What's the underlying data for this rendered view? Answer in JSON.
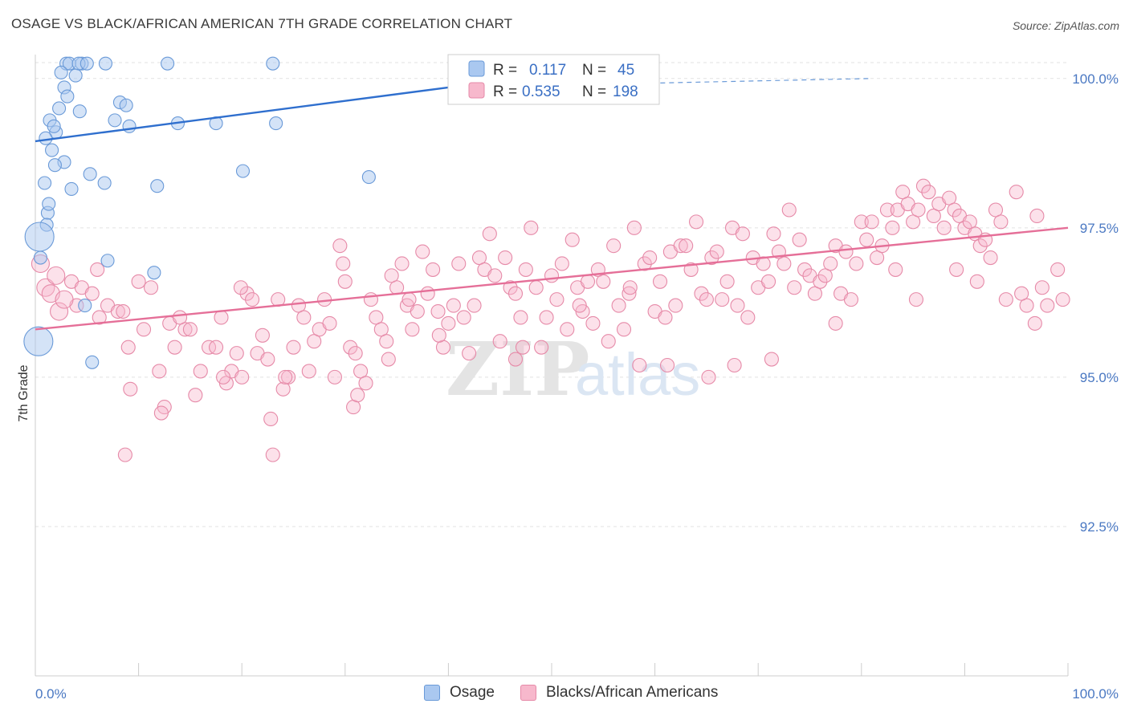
{
  "header": {
    "title": "OSAGE VS BLACK/AFRICAN AMERICAN 7TH GRADE CORRELATION CHART",
    "source": "Source: ZipAtlas.com"
  },
  "watermark": {
    "zip": "ZIP",
    "atlas": "atlas"
  },
  "legend": {
    "rows": [
      {
        "r_label": "R =",
        "r_value": "0.117",
        "n_label": "N =",
        "n_value": "45",
        "color": "#aac8f0",
        "stroke": "#6a9ad8"
      },
      {
        "r_label": "R =",
        "r_value": "0.535",
        "n_label": "N =",
        "n_value": "198",
        "color": "#f7b8cc",
        "stroke": "#e68aa8"
      }
    ]
  },
  "bottom_legend": {
    "items": [
      "Osage",
      "Blacks/African Americans"
    ]
  },
  "chart_data": {
    "type": "scatter",
    "title": "OSAGE VS BLACK/AFRICAN AMERICAN 7TH GRADE CORRELATION CHART",
    "xlabel": "",
    "ylabel": "7th Grade",
    "xlim": [
      0,
      100
    ],
    "ylim": [
      90.0,
      100.4
    ],
    "x_tick_labels": [
      "0.0%",
      "100.0%"
    ],
    "y_ticks": [
      100.0,
      97.5,
      95.0,
      92.5
    ],
    "y_tick_labels": [
      "100.0%",
      "97.5%",
      "95.0%",
      "92.5%"
    ],
    "grid": true,
    "legend_position": "top-center",
    "series": [
      {
        "name": "Osage",
        "color": "#aac8f0",
        "stroke": "#6a9ad8",
        "trend": {
          "x": [
            0,
            40
          ],
          "y": [
            98.95,
            99.85
          ],
          "dashed_to": [
            81,
            100.0
          ]
        },
        "points": [
          [
            3.0,
            100.25
          ],
          [
            3.3,
            100.25
          ],
          [
            4.5,
            100.25
          ],
          [
            6.8,
            100.25
          ],
          [
            4.2,
            100.25
          ],
          [
            5.0,
            100.25
          ],
          [
            12.8,
            100.25
          ],
          [
            23.0,
            100.25
          ],
          [
            2.5,
            100.1
          ],
          [
            3.9,
            100.05
          ],
          [
            2.8,
            99.85
          ],
          [
            3.1,
            99.7
          ],
          [
            8.2,
            99.6
          ],
          [
            8.8,
            99.55
          ],
          [
            2.3,
            99.5
          ],
          [
            4.3,
            99.45
          ],
          [
            1.4,
            99.3
          ],
          [
            2.0,
            99.1
          ],
          [
            1.8,
            99.2
          ],
          [
            7.7,
            99.3
          ],
          [
            9.1,
            99.2
          ],
          [
            13.8,
            99.25
          ],
          [
            17.5,
            99.25
          ],
          [
            23.3,
            99.25
          ],
          [
            1.0,
            99.0
          ],
          [
            1.6,
            98.8
          ],
          [
            2.8,
            98.6
          ],
          [
            1.9,
            98.55
          ],
          [
            20.1,
            98.45
          ],
          [
            32.3,
            98.35
          ],
          [
            5.3,
            98.4
          ],
          [
            6.7,
            98.25
          ],
          [
            0.9,
            98.25
          ],
          [
            3.5,
            98.15
          ],
          [
            11.8,
            98.2
          ],
          [
            1.2,
            97.75
          ],
          [
            1.1,
            97.55
          ],
          [
            0.4,
            97.35
          ],
          [
            0.5,
            97.0
          ],
          [
            7.0,
            96.95
          ],
          [
            11.5,
            96.75
          ],
          [
            4.8,
            96.2
          ],
          [
            5.5,
            95.25
          ],
          [
            0.3,
            95.6
          ],
          [
            1.3,
            97.9
          ]
        ]
      },
      {
        "name": "Blacks/African Americans",
        "color": "#f7b8cc",
        "stroke": "#e68aa8",
        "trend": {
          "x": [
            0,
            100
          ],
          "y": [
            95.8,
            97.5
          ]
        },
        "points": [
          [
            0.5,
            96.9
          ],
          [
            1.0,
            96.5
          ],
          [
            2.0,
            96.7
          ],
          [
            2.3,
            96.1
          ],
          [
            3.5,
            96.6
          ],
          [
            4.0,
            96.2
          ],
          [
            4.5,
            96.5
          ],
          [
            5.5,
            96.4
          ],
          [
            6.0,
            96.8
          ],
          [
            6.2,
            96.0
          ],
          [
            7.0,
            96.2
          ],
          [
            8.0,
            96.1
          ],
          [
            8.5,
            96.1
          ],
          [
            9.0,
            95.5
          ],
          [
            10.0,
            96.6
          ],
          [
            10.5,
            95.8
          ],
          [
            11.2,
            96.5
          ],
          [
            12.0,
            95.1
          ],
          [
            12.5,
            94.5
          ],
          [
            13.0,
            95.9
          ],
          [
            13.5,
            95.5
          ],
          [
            14.5,
            95.8
          ],
          [
            15.0,
            95.8
          ],
          [
            15.5,
            94.7
          ],
          [
            16.0,
            95.1
          ],
          [
            16.8,
            95.5
          ],
          [
            17.5,
            95.5
          ],
          [
            18.0,
            96.0
          ],
          [
            18.5,
            94.9
          ],
          [
            19.0,
            95.1
          ],
          [
            19.5,
            95.4
          ],
          [
            20.0,
            95.0
          ],
          [
            20.5,
            96.4
          ],
          [
            21.0,
            96.3
          ],
          [
            21.5,
            95.4
          ],
          [
            22.0,
            95.7
          ],
          [
            22.5,
            95.3
          ],
          [
            23.5,
            96.3
          ],
          [
            24.0,
            94.8
          ],
          [
            24.5,
            95.0
          ],
          [
            25.0,
            95.5
          ],
          [
            25.5,
            96.2
          ],
          [
            26.0,
            96.0
          ],
          [
            26.5,
            95.1
          ],
          [
            27.0,
            95.6
          ],
          [
            27.5,
            95.8
          ],
          [
            28.0,
            96.3
          ],
          [
            28.5,
            95.9
          ],
          [
            29.0,
            95.0
          ],
          [
            29.5,
            97.2
          ],
          [
            30.0,
            96.6
          ],
          [
            30.5,
            95.5
          ],
          [
            31.0,
            95.4
          ],
          [
            31.5,
            95.1
          ],
          [
            32.0,
            94.9
          ],
          [
            32.5,
            96.3
          ],
          [
            33.0,
            96.0
          ],
          [
            33.5,
            95.8
          ],
          [
            34.0,
            95.6
          ],
          [
            34.5,
            96.7
          ],
          [
            35.0,
            96.5
          ],
          [
            35.5,
            96.9
          ],
          [
            36.0,
            96.2
          ],
          [
            36.5,
            95.8
          ],
          [
            37.0,
            96.1
          ],
          [
            37.5,
            97.1
          ],
          [
            38.0,
            96.4
          ],
          [
            38.5,
            96.8
          ],
          [
            39.0,
            96.1
          ],
          [
            39.5,
            95.5
          ],
          [
            40.0,
            95.9
          ],
          [
            40.5,
            96.2
          ],
          [
            41.0,
            96.9
          ],
          [
            41.5,
            96.0
          ],
          [
            42.0,
            95.4
          ],
          [
            42.5,
            96.2
          ],
          [
            43.0,
            97.0
          ],
          [
            43.5,
            96.8
          ],
          [
            44.0,
            97.4
          ],
          [
            44.5,
            96.7
          ],
          [
            45.0,
            95.6
          ],
          [
            45.5,
            97.0
          ],
          [
            46.0,
            96.5
          ],
          [
            46.5,
            96.4
          ],
          [
            47.0,
            96.0
          ],
          [
            47.5,
            96.8
          ],
          [
            48.0,
            97.5
          ],
          [
            48.5,
            96.5
          ],
          [
            49.0,
            95.5
          ],
          [
            49.5,
            96.0
          ],
          [
            50.0,
            96.7
          ],
          [
            50.5,
            96.3
          ],
          [
            51.0,
            96.9
          ],
          [
            51.5,
            95.8
          ],
          [
            52.0,
            97.3
          ],
          [
            52.5,
            96.5
          ],
          [
            53.0,
            96.1
          ],
          [
            53.5,
            96.6
          ],
          [
            54.0,
            95.9
          ],
          [
            54.5,
            96.8
          ],
          [
            55.0,
            96.6
          ],
          [
            55.5,
            95.6
          ],
          [
            56.0,
            97.2
          ],
          [
            56.5,
            96.2
          ],
          [
            57.0,
            95.8
          ],
          [
            57.5,
            96.4
          ],
          [
            58.0,
            97.5
          ],
          [
            58.5,
            95.2
          ],
          [
            59.0,
            96.9
          ],
          [
            59.5,
            97.0
          ],
          [
            60.0,
            96.1
          ],
          [
            60.5,
            96.6
          ],
          [
            61.0,
            96.0
          ],
          [
            61.5,
            97.1
          ],
          [
            62.0,
            96.2
          ],
          [
            62.5,
            97.2
          ],
          [
            63.0,
            97.2
          ],
          [
            63.5,
            96.8
          ],
          [
            64.0,
            97.6
          ],
          [
            64.5,
            96.4
          ],
          [
            65.0,
            96.3
          ],
          [
            65.5,
            97.0
          ],
          [
            66.0,
            97.1
          ],
          [
            66.5,
            96.3
          ],
          [
            67.0,
            96.6
          ],
          [
            67.5,
            97.5
          ],
          [
            68.0,
            96.2
          ],
          [
            68.5,
            97.4
          ],
          [
            69.0,
            96.0
          ],
          [
            69.5,
            97.0
          ],
          [
            70.0,
            96.5
          ],
          [
            70.5,
            96.9
          ],
          [
            71.0,
            96.6
          ],
          [
            71.5,
            97.4
          ],
          [
            72.0,
            97.1
          ],
          [
            72.5,
            96.9
          ],
          [
            73.0,
            97.8
          ],
          [
            73.5,
            96.5
          ],
          [
            74.0,
            97.3
          ],
          [
            74.5,
            96.8
          ],
          [
            75.0,
            96.7
          ],
          [
            75.5,
            96.4
          ],
          [
            76.0,
            96.6
          ],
          [
            76.5,
            96.7
          ],
          [
            77.0,
            96.9
          ],
          [
            77.5,
            97.2
          ],
          [
            78.0,
            96.4
          ],
          [
            78.5,
            97.1
          ],
          [
            79.0,
            96.3
          ],
          [
            79.5,
            96.9
          ],
          [
            80.0,
            97.6
          ],
          [
            80.5,
            97.3
          ],
          [
            81.0,
            97.6
          ],
          [
            81.5,
            97.0
          ],
          [
            82.0,
            97.2
          ],
          [
            82.5,
            97.8
          ],
          [
            83.0,
            97.5
          ],
          [
            83.5,
            97.8
          ],
          [
            84.0,
            98.1
          ],
          [
            84.5,
            97.9
          ],
          [
            85.0,
            97.6
          ],
          [
            85.5,
            97.8
          ],
          [
            86.0,
            98.2
          ],
          [
            86.5,
            98.1
          ],
          [
            87.0,
            97.7
          ],
          [
            87.5,
            97.9
          ],
          [
            88.0,
            97.5
          ],
          [
            88.5,
            98.0
          ],
          [
            89.0,
            97.8
          ],
          [
            89.5,
            97.7
          ],
          [
            90.0,
            97.5
          ],
          [
            90.5,
            97.6
          ],
          [
            91.0,
            97.4
          ],
          [
            91.5,
            97.2
          ],
          [
            92.0,
            97.3
          ],
          [
            92.5,
            97.0
          ],
          [
            93.0,
            97.8
          ],
          [
            93.5,
            97.6
          ],
          [
            94.0,
            96.3
          ],
          [
            95.0,
            98.1
          ],
          [
            96.0,
            96.2
          ],
          [
            97.0,
            97.7
          ],
          [
            98.0,
            96.2
          ],
          [
            99.0,
            96.8
          ],
          [
            99.5,
            96.3
          ],
          [
            97.5,
            96.5
          ],
          [
            1.5,
            96.4
          ],
          [
            2.8,
            96.3
          ],
          [
            18.2,
            95.0
          ],
          [
            24.2,
            95.0
          ],
          [
            9.2,
            94.8
          ],
          [
            12.2,
            94.4
          ],
          [
            22.8,
            94.3
          ],
          [
            23.0,
            93.7
          ],
          [
            30.8,
            94.5
          ],
          [
            31.2,
            94.7
          ],
          [
            34.2,
            95.3
          ],
          [
            46.5,
            95.3
          ],
          [
            47.2,
            95.5
          ],
          [
            61.2,
            95.2
          ],
          [
            65.2,
            95.0
          ],
          [
            67.7,
            95.2
          ],
          [
            71.3,
            95.3
          ],
          [
            83.3,
            96.8
          ],
          [
            85.3,
            96.3
          ],
          [
            91.2,
            96.6
          ],
          [
            95.5,
            96.4
          ],
          [
            96.8,
            95.9
          ],
          [
            8.7,
            93.7
          ],
          [
            14.0,
            96.0
          ],
          [
            19.9,
            96.5
          ],
          [
            29.8,
            96.9
          ],
          [
            39.1,
            95.7
          ],
          [
            52.7,
            96.2
          ],
          [
            77.5,
            95.9
          ],
          [
            89.2,
            96.8
          ],
          [
            57.6,
            96.5
          ],
          [
            36.2,
            96.3
          ]
        ]
      }
    ]
  }
}
